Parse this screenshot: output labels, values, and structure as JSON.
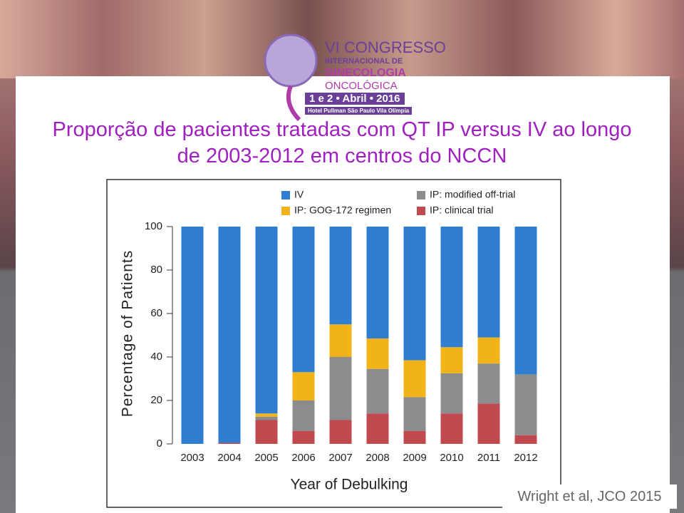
{
  "logo": {
    "lines": [
      "VI CONGRESSO",
      "INTERNACIONAL DE",
      "GINECOLOGIA",
      "ONCOLÓGICA",
      "1 e 2 • Abril • 2016",
      "Hotel Pullman São Paulo Vila Olímpia"
    ]
  },
  "title_lines": [
    "Proporção de pacientes tratadas com QT IP versus IV ao longo",
    "de 2003-2012 em centros do NCCN"
  ],
  "citation": "Wright et al, JCO 2015",
  "chart_data": {
    "type": "stacked-bar",
    "x_label": "Year of Debulking",
    "y_label": "Percentage of Patients",
    "categories": [
      "2003",
      "2004",
      "2005",
      "2006",
      "2007",
      "2008",
      "2009",
      "2010",
      "2011",
      "2012"
    ],
    "series": [
      {
        "name": "IP: clinical trial",
        "color": "#c0484f",
        "values": [
          0,
          0.5,
          11,
          6,
          11,
          14,
          6,
          14,
          18.5,
          4
        ]
      },
      {
        "name": "IP: modified off-trial",
        "color": "#8c8c8c",
        "values": [
          0,
          0,
          1.5,
          14,
          29,
          20.5,
          15.5,
          18.5,
          18.5,
          28
        ]
      },
      {
        "name": "IP: GOG-172 regimen",
        "color": "#f0b41a",
        "values": [
          0,
          0,
          1.5,
          13,
          15,
          14,
          17,
          12,
          12,
          0
        ]
      },
      {
        "name": "IV",
        "color": "#2f7ed0",
        "values": [
          100,
          99.5,
          86,
          67,
          45,
          51.5,
          61.5,
          55.5,
          51,
          68
        ]
      }
    ],
    "ylim": [
      0,
      100
    ],
    "yticks": [
      0,
      20,
      40,
      60,
      80,
      100
    ]
  }
}
